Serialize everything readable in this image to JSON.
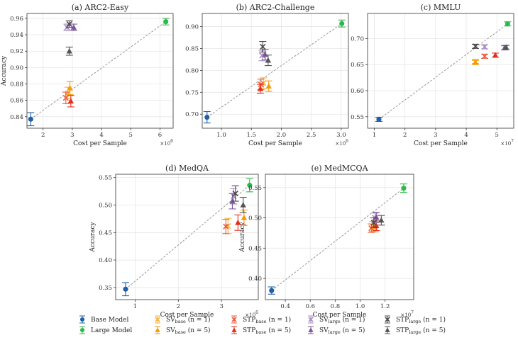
{
  "colors": {
    "base": "#1f5fa8",
    "large": "#2db84d",
    "sv_n1": "#f7b13a",
    "sv_n5": "#f59a0b",
    "stp_base_n1": "#ee5a3c",
    "stp_base_n5": "#e0301e",
    "sv_large_n1": "#a98bc0",
    "sv_large_n5": "#7d5a9c",
    "stp_large_n1": "#4a4a4a",
    "stp_large_n5": "#555555",
    "diag": "#999999",
    "grid": "#e6e6e6"
  },
  "legend": [
    {
      "key": "base",
      "marker": "circle",
      "label": "Base Model"
    },
    {
      "key": "large",
      "marker": "circle",
      "label": "Large Model"
    },
    {
      "key": "sv_n1",
      "marker": "x",
      "label": "SV",
      "sub": "base",
      "suffix": " (n = 1)"
    },
    {
      "key": "sv_n5",
      "marker": "tri",
      "label": "SV",
      "sub": "base",
      "suffix": " (n = 5)"
    },
    {
      "key": "stp_base_n1",
      "marker": "x",
      "label": "STP",
      "sub": "base",
      "suffix": " (n = 1)"
    },
    {
      "key": "stp_base_n5",
      "marker": "tri",
      "label": "STP",
      "sub": "base",
      "suffix": " (n = 5)"
    },
    {
      "key": "sv_large_n1",
      "marker": "x",
      "label": "SV",
      "sub": "large",
      "suffix": " (n = 1)"
    },
    {
      "key": "sv_large_n5",
      "marker": "tri",
      "label": "SV",
      "sub": "large",
      "suffix": " (n = 5)"
    },
    {
      "key": "stp_large_n1",
      "marker": "x",
      "label": "STP",
      "sub": "large",
      "suffix": " (n = 1)"
    },
    {
      "key": "stp_large_n5",
      "marker": "tri",
      "label": "STP",
      "sub": "large",
      "suffix": " (n = 5)"
    }
  ],
  "chart_data": [
    {
      "id": "arc2-easy",
      "type": "scatter",
      "title": "(a) ARC2-Easy",
      "xlabel": "Cost per Sample",
      "ylabel": "Accuracy",
      "multiplier": "×10",
      "multiplier_exp": "6",
      "xlim": [
        1.45,
        6.45
      ],
      "ylim": [
        0.826,
        0.966
      ],
      "xticks": [
        2,
        3,
        4,
        5,
        6
      ],
      "yticks": [
        0.84,
        0.86,
        0.88,
        0.9,
        0.92,
        0.94,
        0.96
      ],
      "xtick_labels": [
        "2",
        "3",
        "4",
        "5",
        "6"
      ],
      "ytick_labels": [
        "0.84",
        "0.86",
        "0.88",
        "0.90",
        "0.92",
        "0.94",
        "0.96"
      ],
      "points": [
        {
          "key": "base",
          "x": 1.58,
          "y": 0.837,
          "err": 0.008
        },
        {
          "key": "large",
          "x": 6.2,
          "y": 0.956,
          "err": 0.004
        },
        {
          "key": "sv_n1",
          "x": 2.85,
          "y": 0.869,
          "err": 0.007
        },
        {
          "key": "sv_n5",
          "x": 2.92,
          "y": 0.875,
          "err": 0.008
        },
        {
          "key": "stp_base_n1",
          "x": 2.78,
          "y": 0.863,
          "err": 0.007
        },
        {
          "key": "stp_base_n5",
          "x": 2.95,
          "y": 0.859,
          "err": 0.007
        },
        {
          "key": "sv_large_n1",
          "x": 2.82,
          "y": 0.949,
          "err": 0.004
        },
        {
          "key": "sv_large_n5",
          "x": 3.05,
          "y": 0.949,
          "err": 0.004
        },
        {
          "key": "stp_large_n1",
          "x": 2.9,
          "y": 0.953,
          "err": 0.004
        },
        {
          "key": "stp_large_n5",
          "x": 2.9,
          "y": 0.92,
          "err": 0.005
        }
      ]
    },
    {
      "id": "arc2-challenge",
      "type": "scatter",
      "title": "(b) ARC2-Challenge",
      "xlabel": "Cost per Sample",
      "ylabel": "",
      "multiplier": "×10",
      "multiplier_exp": "6",
      "xlim": [
        0.68,
        3.12
      ],
      "ylim": [
        0.668,
        0.93
      ],
      "xticks": [
        1.0,
        1.5,
        2.0,
        2.5,
        3.0
      ],
      "yticks": [
        0.7,
        0.75,
        0.8,
        0.85,
        0.9
      ],
      "xtick_labels": [
        "1.0",
        "1.5",
        "2.0",
        "2.5",
        "3.0"
      ],
      "ytick_labels": [
        "0.70",
        "0.75",
        "0.80",
        "0.85",
        "0.90"
      ],
      "points": [
        {
          "key": "base",
          "x": 0.76,
          "y": 0.693,
          "err": 0.013
        },
        {
          "key": "large",
          "x": 3.01,
          "y": 0.907,
          "err": 0.008
        },
        {
          "key": "sv_n1",
          "x": 1.7,
          "y": 0.771,
          "err": 0.012
        },
        {
          "key": "sv_n5",
          "x": 1.79,
          "y": 0.764,
          "err": 0.012
        },
        {
          "key": "stp_base_n1",
          "x": 1.66,
          "y": 0.768,
          "err": 0.012
        },
        {
          "key": "stp_base_n5",
          "x": 1.65,
          "y": 0.758,
          "err": 0.01
        },
        {
          "key": "sv_large_n1",
          "x": 1.68,
          "y": 0.834,
          "err": 0.012
        },
        {
          "key": "sv_large_n5",
          "x": 1.73,
          "y": 0.836,
          "err": 0.012
        },
        {
          "key": "stp_large_n1",
          "x": 1.69,
          "y": 0.854,
          "err": 0.012
        },
        {
          "key": "stp_large_n5",
          "x": 1.78,
          "y": 0.823,
          "err": 0.012
        }
      ]
    },
    {
      "id": "mmlu",
      "type": "scatter",
      "title": "(c) MMLU",
      "xlabel": "Cost per Sample",
      "ylabel": "",
      "multiplier": "×10",
      "multiplier_exp": "7",
      "xlim": [
        0.78,
        5.55
      ],
      "ylim": [
        0.528,
        0.748
      ],
      "xticks": [
        1,
        2,
        3,
        4,
        5
      ],
      "yticks": [
        0.55,
        0.6,
        0.65,
        0.7
      ],
      "xtick_labels": [
        "1",
        "2",
        "3",
        "4",
        "5"
      ],
      "ytick_labels": [
        "0.55",
        "0.60",
        "0.65",
        "0.70"
      ],
      "points": [
        {
          "key": "base",
          "x": 1.15,
          "y": 0.545,
          "err": 0.004
        },
        {
          "key": "large",
          "x": 5.35,
          "y": 0.728,
          "err": 0.004
        },
        {
          "key": "sv_n1",
          "x": 4.3,
          "y": 0.656,
          "err": 0.004
        },
        {
          "key": "sv_n5",
          "x": 4.3,
          "y": 0.654,
          "err": 0.004
        },
        {
          "key": "stp_base_n1",
          "x": 4.6,
          "y": 0.666,
          "err": 0.004
        },
        {
          "key": "stp_base_n5",
          "x": 4.95,
          "y": 0.668,
          "err": 0.004
        },
        {
          "key": "sv_large_n1",
          "x": 4.6,
          "y": 0.684,
          "err": 0.004
        },
        {
          "key": "sv_large_n5",
          "x": 5.25,
          "y": 0.682,
          "err": 0.004
        },
        {
          "key": "stp_large_n1",
          "x": 4.3,
          "y": 0.685,
          "err": 0.004
        },
        {
          "key": "stp_large_n5",
          "x": 5.3,
          "y": 0.683,
          "err": 0.004
        }
      ]
    },
    {
      "id": "medqa",
      "type": "scatter",
      "title": "(d) MedQA",
      "xlabel": "Cost per Sample",
      "ylabel": "Accuracy",
      "multiplier": "×10",
      "multiplier_exp": "6",
      "xlim": [
        0.55,
        3.85
      ],
      "ylim": [
        0.328,
        0.556
      ],
      "xticks": [
        1,
        2,
        3
      ],
      "yticks": [
        0.35,
        0.4,
        0.45,
        0.5,
        0.55
      ],
      "xtick_labels": [
        "1",
        "2",
        "3"
      ],
      "ytick_labels": [
        "0.35",
        "0.40",
        "0.45",
        "0.50",
        "0.55"
      ],
      "points": [
        {
          "key": "base",
          "x": 0.78,
          "y": 0.347,
          "err": 0.012
        },
        {
          "key": "large",
          "x": 3.65,
          "y": 0.536,
          "err": 0.012
        },
        {
          "key": "sv_n1",
          "x": 3.15,
          "y": 0.462,
          "err": 0.014
        },
        {
          "key": "sv_n5",
          "x": 3.52,
          "y": 0.477,
          "err": 0.014
        },
        {
          "key": "stp_base_n1",
          "x": 3.1,
          "y": 0.461,
          "err": 0.013
        },
        {
          "key": "stp_base_n5",
          "x": 3.38,
          "y": 0.468,
          "err": 0.014
        },
        {
          "key": "sv_large_n1",
          "x": 3.28,
          "y": 0.516,
          "err": 0.014
        },
        {
          "key": "sv_large_n5",
          "x": 3.25,
          "y": 0.507,
          "err": 0.014
        },
        {
          "key": "stp_large_n1",
          "x": 3.32,
          "y": 0.521,
          "err": 0.014
        },
        {
          "key": "stp_large_n5",
          "x": 3.5,
          "y": 0.5,
          "err": 0.014
        }
      ]
    },
    {
      "id": "medmcqa",
      "type": "scatter",
      "title": "(e) MedMCQA",
      "xlabel": "Cost per Sample",
      "ylabel": "Accuracy",
      "multiplier": "×10",
      "multiplier_exp": "7",
      "xlim": [
        0.24,
        1.43
      ],
      "ylim": [
        0.365,
        0.572
      ],
      "xticks": [
        0.4,
        0.6,
        0.8,
        1.0,
        1.2
      ],
      "yticks": [
        0.4,
        0.45,
        0.5,
        0.55
      ],
      "xtick_labels": [
        "0.4",
        "0.6",
        "0.8",
        "1.0",
        "1.2"
      ],
      "ytick_labels": [
        "0.40",
        "0.45",
        "0.50",
        "0.55"
      ],
      "points": [
        {
          "key": "base",
          "x": 0.29,
          "y": 0.38,
          "err": 0.006
        },
        {
          "key": "large",
          "x": 1.35,
          "y": 0.549,
          "err": 0.007
        },
        {
          "key": "sv_n1",
          "x": 1.1,
          "y": 0.486,
          "err": 0.008
        },
        {
          "key": "sv_n5",
          "x": 1.12,
          "y": 0.485,
          "err": 0.008
        },
        {
          "key": "stp_base_n1",
          "x": 1.09,
          "y": 0.483,
          "err": 0.007
        },
        {
          "key": "stp_base_n5",
          "x": 1.13,
          "y": 0.487,
          "err": 0.008
        },
        {
          "key": "sv_large_n1",
          "x": 1.12,
          "y": 0.5,
          "err": 0.008
        },
        {
          "key": "sv_large_n5",
          "x": 1.13,
          "y": 0.501,
          "err": 0.008
        },
        {
          "key": "stp_large_n1",
          "x": 1.11,
          "y": 0.492,
          "err": 0.008
        },
        {
          "key": "stp_large_n5",
          "x": 1.17,
          "y": 0.496,
          "err": 0.008
        }
      ]
    }
  ]
}
